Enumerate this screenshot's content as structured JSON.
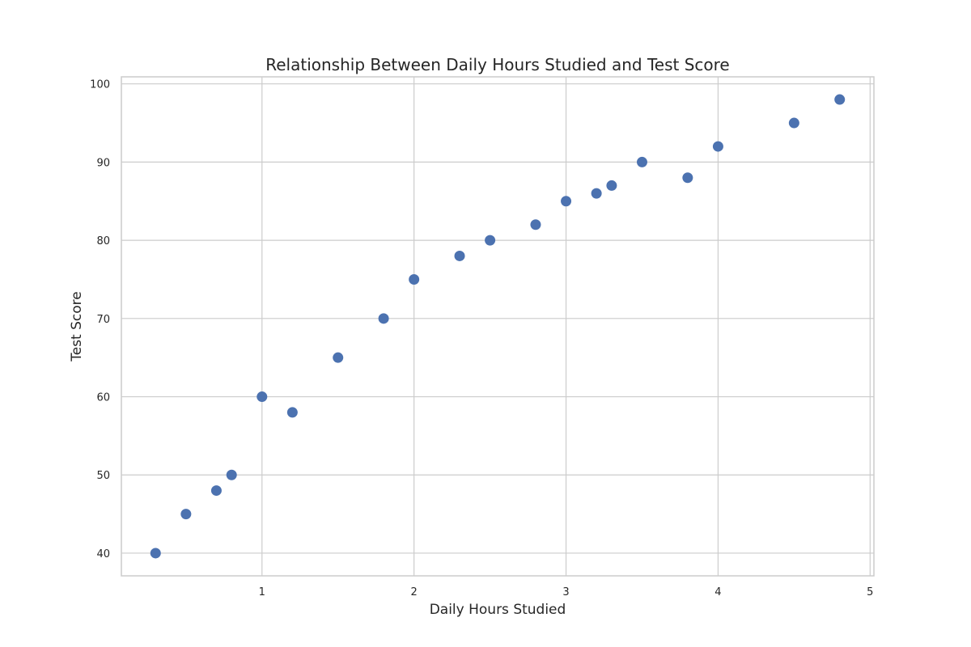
{
  "chart_data": {
    "type": "scatter",
    "title": "Relationship Between Daily Hours Studied and Test Score",
    "xlabel": "Daily Hours Studied",
    "ylabel": "Test Score",
    "xlim": [
      0.075,
      5.025
    ],
    "ylim": [
      37.1,
      100.9
    ],
    "xticks": [
      1,
      2,
      3,
      4,
      5
    ],
    "yticks": [
      40,
      50,
      60,
      70,
      80,
      90,
      100
    ],
    "grid": true,
    "marker_color": "#4c72b0",
    "points": [
      {
        "x": 0.3,
        "y": 40
      },
      {
        "x": 0.5,
        "y": 45
      },
      {
        "x": 0.7,
        "y": 48
      },
      {
        "x": 0.8,
        "y": 50
      },
      {
        "x": 1.0,
        "y": 60
      },
      {
        "x": 1.2,
        "y": 58
      },
      {
        "x": 1.5,
        "y": 65
      },
      {
        "x": 1.8,
        "y": 70
      },
      {
        "x": 2.0,
        "y": 75
      },
      {
        "x": 2.3,
        "y": 78
      },
      {
        "x": 2.5,
        "y": 80
      },
      {
        "x": 2.8,
        "y": 82
      },
      {
        "x": 3.0,
        "y": 85
      },
      {
        "x": 3.2,
        "y": 86
      },
      {
        "x": 3.3,
        "y": 87
      },
      {
        "x": 3.5,
        "y": 90
      },
      {
        "x": 3.8,
        "y": 88
      },
      {
        "x": 4.0,
        "y": 92
      },
      {
        "x": 4.5,
        "y": 95
      },
      {
        "x": 4.8,
        "y": 98
      }
    ]
  }
}
